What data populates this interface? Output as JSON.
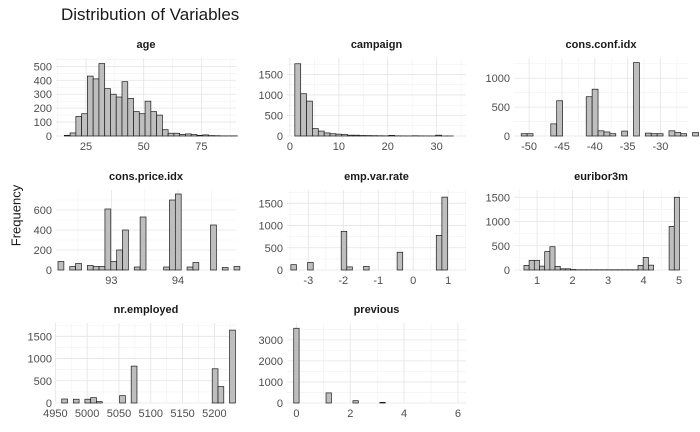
{
  "title": "Distribution of Variables",
  "ylabel": "Frequency",
  "colors": {
    "bar_fill": "#bebebe",
    "bar_stroke": "#1a1a1a",
    "grid_major": "#e4e4e4",
    "grid_minor": "#f1f1f1",
    "tick_text": "#4d4d4d"
  },
  "chart_data": [
    {
      "type": "bar",
      "title": "age",
      "xlim": [
        12,
        90
      ],
      "ylim": [
        0,
        560
      ],
      "xticks": [
        25,
        50,
        75
      ],
      "yticks": [
        0,
        100,
        200,
        300,
        400,
        500
      ],
      "bin_start": 15.6,
      "bin_width": 2.5,
      "values": [
        5,
        22,
        140,
        160,
        430,
        410,
        520,
        340,
        300,
        280,
        390,
        270,
        175,
        160,
        250,
        175,
        150,
        45,
        20,
        20,
        12,
        15,
        10,
        5,
        8,
        3,
        2,
        1,
        1,
        1
      ]
    },
    {
      "type": "bar",
      "title": "campaign",
      "xlim": [
        -0.6,
        36
      ],
      "ylim": [
        0,
        1900
      ],
      "xticks": [
        0,
        10,
        20,
        30
      ],
      "yticks": [
        0,
        500,
        1000,
        1500
      ],
      "bin_start": 1,
      "bin_width": 1.2,
      "values": [
        1760,
        1030,
        850,
        180,
        120,
        75,
        55,
        45,
        35,
        20,
        20,
        12,
        10,
        8,
        6,
        4,
        15,
        4,
        3,
        2,
        6,
        3,
        2,
        2,
        20,
        1,
        1
      ]
    },
    {
      "type": "bar",
      "title": "cons.conf.idx",
      "xlim": [
        -52.3,
        -25.8
      ],
      "ylim": [
        0,
        1350
      ],
      "xticks": [
        -50,
        -45,
        -40,
        -35,
        -30
      ],
      "yticks": [
        0,
        500,
        1000
      ],
      "bin_start": -51.2,
      "bin_width": 0.9,
      "values": [
        40,
        40,
        0,
        0,
        0,
        210,
        610,
        0,
        0,
        0,
        0,
        680,
        810,
        90,
        70,
        40,
        0,
        85,
        0,
        1270,
        0,
        50,
        40,
        40,
        0,
        90,
        60,
        40,
        0,
        60
      ]
    },
    {
      "type": "bar",
      "title": "cons.price.idx",
      "xlim": [
        92.17,
        94.87
      ],
      "ylim": [
        0,
        800
      ],
      "xticks": [
        93,
        94
      ],
      "yticks": [
        0,
        200,
        400,
        600
      ],
      "bin_start": 92.2,
      "bin_width": 0.088,
      "values": [
        85,
        0,
        35,
        65,
        0,
        45,
        35,
        35,
        610,
        85,
        200,
        400,
        0,
        30,
        530,
        0,
        0,
        0,
        30,
        700,
        760,
        0,
        30,
        75,
        0,
        0,
        450,
        0,
        25,
        0,
        35
      ]
    },
    {
      "type": "bar",
      "title": "emp.var.rate",
      "xlim": [
        -3.61,
        1.51
      ],
      "ylim": [
        0,
        1800
      ],
      "xticks": [
        -3,
        -2,
        -1,
        0,
        1
      ],
      "yticks": [
        0,
        500,
        1000,
        1500
      ],
      "bin_start": -3.5,
      "bin_width": 0.16,
      "values": [
        120,
        0,
        0,
        170,
        0,
        0,
        0,
        0,
        0,
        870,
        70,
        0,
        0,
        80,
        0,
        0,
        0,
        0,
        0,
        400,
        0,
        0,
        0,
        0,
        0,
        0,
        780,
        1640
      ]
    },
    {
      "type": "bar",
      "title": "euribor3m",
      "xlim": [
        0.35,
        5.25
      ],
      "ylim": [
        0,
        1650
      ],
      "xticks": [
        1,
        2,
        3,
        4,
        5
      ],
      "yticks": [
        0,
        500,
        1000,
        1500
      ],
      "bin_start": 0.63,
      "bin_width": 0.146,
      "values": [
        95,
        200,
        200,
        80,
        380,
        480,
        75,
        25,
        25,
        10,
        5,
        5,
        5,
        5,
        5,
        5,
        5,
        5,
        5,
        5,
        5,
        5,
        95,
        260,
        100,
        0,
        0,
        0,
        900,
        1500
      ]
    },
    {
      "type": "bar",
      "title": "nr.employed",
      "xlim": [
        4951,
        5234
      ],
      "ylim": [
        0,
        1800
      ],
      "xticks": [
        4950,
        5000,
        5050,
        5100,
        5150,
        5200
      ],
      "yticks": [
        0,
        500,
        1000,
        1500
      ],
      "bin_start": 4960,
      "bin_width": 9.1,
      "values": [
        90,
        0,
        85,
        0,
        85,
        120,
        30,
        0,
        0,
        0,
        165,
        0,
        830,
        0,
        0,
        0,
        0,
        0,
        0,
        0,
        0,
        0,
        0,
        0,
        0,
        0,
        770,
        370,
        0,
        1640
      ]
    },
    {
      "type": "bar",
      "title": "previous",
      "xlim": [
        -0.35,
        6.3
      ],
      "ylim": [
        0,
        3800
      ],
      "xticks": [
        0,
        2,
        4,
        6
      ],
      "yticks": [
        0,
        1000,
        2000,
        3000
      ],
      "bin_start": -0.1,
      "bin_width": 0.2,
      "values": [
        3550,
        0,
        0,
        0,
        0,
        0,
        480,
        0,
        0,
        0,
        0,
        110,
        0,
        0,
        0,
        0,
        30,
        0,
        0,
        0,
        0,
        0,
        0,
        0,
        0,
        0,
        0,
        0,
        0,
        0
      ]
    }
  ]
}
